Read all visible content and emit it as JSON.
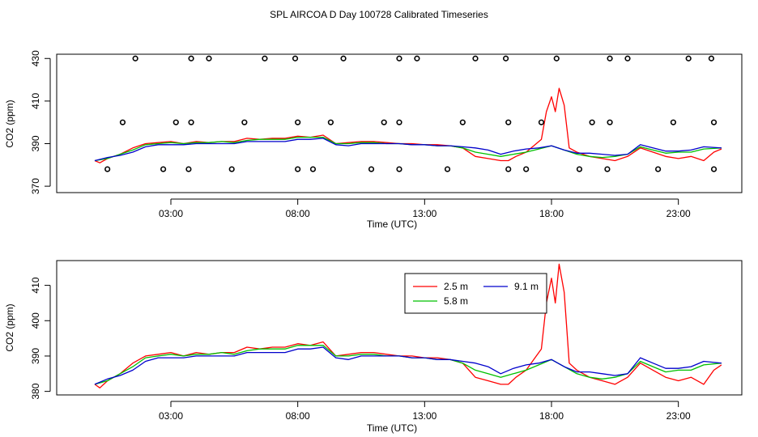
{
  "title": "SPL AIRCOA D  Day 100728  Calibrated Timeseries",
  "chart_data": [
    {
      "type": "scatter+line",
      "name": "top-panel",
      "xlabel": "Time (UTC)",
      "ylabel": "CO2 (ppm)",
      "xlim": [
        -1.5,
        25.5
      ],
      "ylim": [
        367,
        432
      ],
      "xticks": [
        3,
        8,
        13,
        18,
        23
      ],
      "xtick_labels": [
        "03:00",
        "08:00",
        "13:00",
        "18:00",
        "23:00"
      ],
      "yticks": [
        370,
        390,
        410,
        430
      ],
      "ytick_labels": [
        "370",
        "390",
        "410",
        "430"
      ],
      "markers": {
        "shape": "open-circle",
        "points": [
          [
            0.5,
            378
          ],
          [
            1.1,
            400
          ],
          [
            1.6,
            430
          ],
          [
            2.7,
            378
          ],
          [
            3.2,
            400
          ],
          [
            3.7,
            378
          ],
          [
            3.8,
            400
          ],
          [
            3.8,
            430
          ],
          [
            4.5,
            430
          ],
          [
            5.4,
            378
          ],
          [
            5.9,
            400
          ],
          [
            6.7,
            430
          ],
          [
            7.9,
            430
          ],
          [
            8.0,
            378
          ],
          [
            8.0,
            400
          ],
          [
            8.6,
            378
          ],
          [
            9.3,
            400
          ],
          [
            9.8,
            430
          ],
          [
            10.9,
            378
          ],
          [
            11.4,
            400
          ],
          [
            12.0,
            378
          ],
          [
            12.0,
            400
          ],
          [
            12.0,
            430
          ],
          [
            12.7,
            430
          ],
          [
            13.9,
            378
          ],
          [
            14.5,
            400
          ],
          [
            15.0,
            430
          ],
          [
            16.2,
            430
          ],
          [
            16.3,
            400
          ],
          [
            16.3,
            378
          ],
          [
            17.0,
            378
          ],
          [
            17.6,
            400
          ],
          [
            18.2,
            430
          ],
          [
            19.1,
            378
          ],
          [
            19.6,
            400
          ],
          [
            20.2,
            378
          ],
          [
            20.3,
            400
          ],
          [
            20.3,
            430
          ],
          [
            21.0,
            430
          ],
          [
            22.2,
            378
          ],
          [
            22.8,
            400
          ],
          [
            23.4,
            430
          ],
          [
            24.3,
            430
          ],
          [
            24.4,
            400
          ],
          [
            24.4,
            378
          ]
        ]
      },
      "series": [
        {
          "name": "2.5 m",
          "color": "#ff0000",
          "x": [
            0,
            0.2,
            0.5,
            1,
            1.5,
            2,
            2.5,
            3,
            3.5,
            4,
            4.5,
            5,
            5.5,
            6,
            6.5,
            7,
            7.5,
            8,
            8.5,
            9,
            9.5,
            10,
            10.5,
            11,
            11.5,
            12,
            12.5,
            13,
            13.5,
            14,
            14.5,
            15,
            15.5,
            16,
            16.3,
            16.6,
            17,
            17.3,
            17.6,
            17.8,
            18.0,
            18.15,
            18.3,
            18.5,
            18.7,
            19,
            19.5,
            20,
            20.5,
            21,
            21.5,
            22,
            22.5,
            23,
            23.5,
            24,
            24.4,
            24.7
          ],
          "y": [
            382,
            381,
            383,
            385,
            388,
            390,
            390.5,
            391,
            390,
            391,
            390.5,
            391,
            391,
            392.5,
            392,
            392.5,
            392.5,
            393.5,
            393,
            394,
            390,
            390.5,
            391,
            391,
            390.5,
            390,
            390,
            389.5,
            389.5,
            389,
            388,
            384,
            383,
            382,
            382,
            384,
            386,
            389,
            392,
            405,
            412,
            405,
            416,
            408,
            388,
            386,
            384,
            383,
            382,
            384,
            388,
            386,
            384,
            383,
            384,
            382,
            386,
            387.5
          ]
        },
        {
          "name": "5.8 m",
          "color": "#00c000",
          "x": [
            0,
            0.5,
            1,
            1.5,
            2,
            2.5,
            3,
            3.5,
            4,
            4.5,
            5,
            5.5,
            6,
            6.5,
            7,
            7.5,
            8,
            8.5,
            9,
            9.5,
            10,
            10.5,
            11,
            11.5,
            12,
            12.5,
            13,
            13.5,
            14,
            14.5,
            15,
            15.5,
            16,
            16.5,
            17,
            17.5,
            18,
            18.5,
            19,
            19.5,
            20,
            20.5,
            21,
            21.5,
            22,
            22.5,
            23,
            23.5,
            24,
            24.7
          ],
          "y": [
            382,
            383,
            385,
            387,
            389.5,
            390,
            390.5,
            390,
            390.5,
            390.5,
            391,
            390.5,
            391.5,
            392,
            392,
            392,
            393,
            393,
            393,
            390,
            390,
            390.5,
            390.5,
            390,
            390,
            389.5,
            389.5,
            389,
            389,
            388,
            386,
            385,
            384,
            385,
            386,
            387.5,
            389,
            387,
            385,
            384,
            383.5,
            384,
            385,
            388.5,
            387,
            385.5,
            386,
            386,
            387.5,
            388
          ]
        },
        {
          "name": "9.1 m",
          "color": "#0000cc",
          "x": [
            0,
            0.5,
            1,
            1.5,
            2,
            2.5,
            3,
            3.5,
            4,
            4.5,
            5,
            5.5,
            6,
            6.5,
            7,
            7.5,
            8,
            8.5,
            9,
            9.5,
            10,
            10.5,
            11,
            11.5,
            12,
            12.5,
            13,
            13.5,
            14,
            14.5,
            15,
            15.5,
            16,
            16.5,
            17,
            17.5,
            18,
            18.5,
            19,
            19.5,
            20,
            20.5,
            21,
            21.5,
            22,
            22.5,
            23,
            23.5,
            24,
            24.7
          ],
          "y": [
            382,
            383.5,
            384.5,
            386,
            388.5,
            389.5,
            389.5,
            389.5,
            390,
            390,
            390,
            390,
            391,
            391,
            391,
            391,
            392,
            392,
            392.5,
            389.5,
            389,
            390,
            390,
            390,
            390,
            389.5,
            389.5,
            389,
            389,
            388.5,
            388,
            387,
            385,
            386.5,
            387.5,
            388,
            389,
            387,
            385.5,
            385.5,
            385,
            384.5,
            385,
            389.5,
            388,
            386.5,
            386.5,
            387,
            388.5,
            388
          ]
        }
      ]
    },
    {
      "type": "line",
      "name": "bottom-panel",
      "xlabel": "Time (UTC)",
      "ylabel": "CO2 (ppm)",
      "xlim": [
        -1.5,
        25.5
      ],
      "ylim": [
        379,
        417
      ],
      "xticks": [
        3,
        8,
        13,
        18,
        23
      ],
      "xtick_labels": [
        "03:00",
        "08:00",
        "13:00",
        "18:00",
        "23:00"
      ],
      "yticks": [
        380,
        390,
        400,
        410
      ],
      "ytick_labels": [
        "380",
        "390",
        "400",
        "410"
      ],
      "legend": {
        "placement": "top-right",
        "entries": [
          {
            "label": "2.5 m",
            "color": "#ff0000"
          },
          {
            "label": "9.1 m",
            "color": "#0000cc"
          },
          {
            "label": "5.8 m",
            "color": "#00c000"
          }
        ]
      },
      "series": [
        {
          "name": "2.5 m",
          "color": "#ff0000",
          "x": [
            0,
            0.2,
            0.5,
            1,
            1.5,
            2,
            2.5,
            3,
            3.5,
            4,
            4.5,
            5,
            5.5,
            6,
            6.5,
            7,
            7.5,
            8,
            8.5,
            9,
            9.5,
            10,
            10.5,
            11,
            11.5,
            12,
            12.5,
            13,
            13.5,
            14,
            14.5,
            15,
            15.5,
            16,
            16.3,
            16.6,
            17,
            17.3,
            17.6,
            17.8,
            18.0,
            18.15,
            18.3,
            18.5,
            18.7,
            19,
            19.5,
            20,
            20.5,
            21,
            21.5,
            22,
            22.5,
            23,
            23.5,
            24,
            24.4,
            24.7
          ],
          "y": [
            382,
            381,
            383,
            385,
            388,
            390,
            390.5,
            391,
            390,
            391,
            390.5,
            391,
            391,
            392.5,
            392,
            392.5,
            392.5,
            393.5,
            393,
            394,
            390,
            390.5,
            391,
            391,
            390.5,
            390,
            390,
            389.5,
            389.5,
            389,
            388,
            384,
            383,
            382,
            382,
            384,
            386,
            389,
            392,
            405,
            412,
            405,
            416,
            408,
            388,
            386,
            384,
            383,
            382,
            384,
            388,
            386,
            384,
            383,
            384,
            382,
            386,
            387.5
          ]
        },
        {
          "name": "5.8 m",
          "color": "#00c000",
          "x": [
            0,
            0.5,
            1,
            1.5,
            2,
            2.5,
            3,
            3.5,
            4,
            4.5,
            5,
            5.5,
            6,
            6.5,
            7,
            7.5,
            8,
            8.5,
            9,
            9.5,
            10,
            10.5,
            11,
            11.5,
            12,
            12.5,
            13,
            13.5,
            14,
            14.5,
            15,
            15.5,
            16,
            16.5,
            17,
            17.5,
            18,
            18.5,
            19,
            19.5,
            20,
            20.5,
            21,
            21.5,
            22,
            22.5,
            23,
            23.5,
            24,
            24.7
          ],
          "y": [
            382,
            383,
            385,
            387,
            389.5,
            390,
            390.5,
            390,
            390.5,
            390.5,
            391,
            390.5,
            391.5,
            392,
            392,
            392,
            393,
            393,
            393,
            390,
            390,
            390.5,
            390.5,
            390,
            390,
            389.5,
            389.5,
            389,
            389,
            388,
            386,
            385,
            384,
            385,
            386,
            387.5,
            389,
            387,
            385,
            384,
            383.5,
            384,
            385,
            388.5,
            387,
            385.5,
            386,
            386,
            387.5,
            388
          ]
        },
        {
          "name": "9.1 m",
          "color": "#0000cc",
          "x": [
            0,
            0.5,
            1,
            1.5,
            2,
            2.5,
            3,
            3.5,
            4,
            4.5,
            5,
            5.5,
            6,
            6.5,
            7,
            7.5,
            8,
            8.5,
            9,
            9.5,
            10,
            10.5,
            11,
            11.5,
            12,
            12.5,
            13,
            13.5,
            14,
            14.5,
            15,
            15.5,
            16,
            16.5,
            17,
            17.5,
            18,
            18.5,
            19,
            19.5,
            20,
            20.5,
            21,
            21.5,
            22,
            22.5,
            23,
            23.5,
            24,
            24.7
          ],
          "y": [
            382,
            383.5,
            384.5,
            386,
            388.5,
            389.5,
            389.5,
            389.5,
            390,
            390,
            390,
            390,
            391,
            391,
            391,
            391,
            392,
            392,
            392.5,
            389.5,
            389,
            390,
            390,
            390,
            390,
            389.5,
            389.5,
            389,
            389,
            388.5,
            388,
            387,
            385,
            386.5,
            387.5,
            388,
            389,
            387,
            385.5,
            385.5,
            385,
            384.5,
            385,
            389.5,
            388,
            386.5,
            386.5,
            387,
            388.5,
            388
          ]
        }
      ]
    }
  ]
}
